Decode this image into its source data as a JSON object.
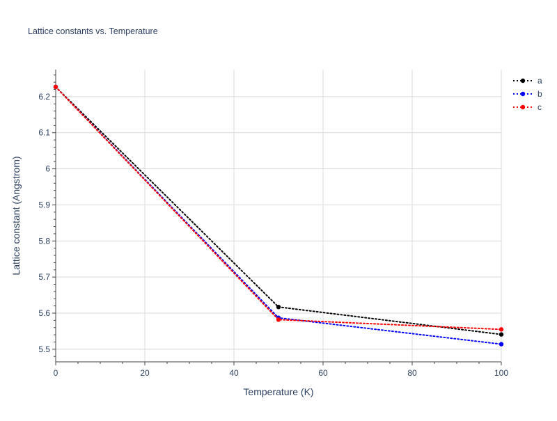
{
  "chart_data": {
    "type": "line",
    "title": "Lattice constants vs. Temperature",
    "xlabel": "Temperature (K)",
    "ylabel": "Lattice constant (Angstrom)",
    "xlim": [
      0,
      100
    ],
    "ylim": [
      5.465,
      6.275
    ],
    "xticks": [
      0,
      20,
      40,
      60,
      80,
      100
    ],
    "yticks": [
      5.5,
      5.6,
      5.7,
      5.8,
      5.9,
      6,
      6.1,
      6.2
    ],
    "ytick_labels": [
      "5.5",
      "5.6",
      "5.7",
      "5.8",
      "5.9",
      "6",
      "6.1",
      "6.2"
    ],
    "grid": true,
    "legend_position": "top-right",
    "x": [
      0,
      50,
      100
    ],
    "series": [
      {
        "name": "a",
        "color": "#000000",
        "values": [
          6.227,
          5.617,
          5.541
        ]
      },
      {
        "name": "b",
        "color": "#0000ff",
        "values": [
          6.227,
          5.587,
          5.514
        ]
      },
      {
        "name": "c",
        "color": "#ff0000",
        "values": [
          6.227,
          5.582,
          5.555
        ]
      }
    ]
  }
}
